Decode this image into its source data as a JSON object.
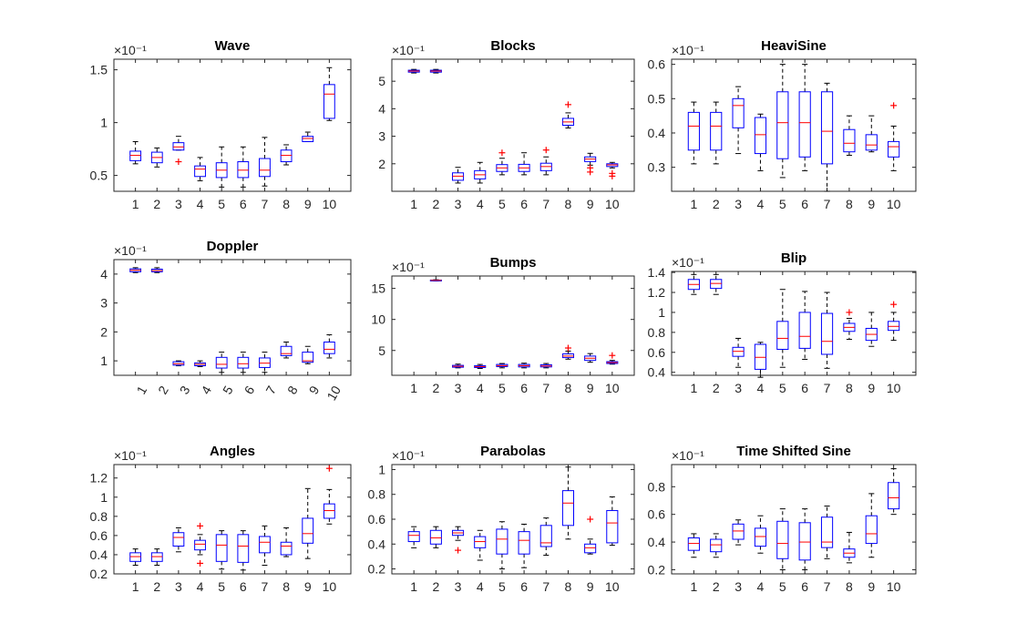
{
  "colors": {
    "box": "#0000ff",
    "median": "#ff0000",
    "whisker": "#000000",
    "outlier": "#ff0000",
    "axis": "#262626"
  },
  "chart_data": [
    {
      "type": "boxplot",
      "title": "Wave",
      "exponent": "×10⁻¹",
      "ylim": [
        0.35,
        1.6
      ],
      "yticks": [
        0.5,
        1,
        1.5
      ],
      "ytick_labels": [
        "0.5",
        "1",
        "1.5"
      ],
      "categories": [
        "1",
        "2",
        "3",
        "4",
        "5",
        "6",
        "7",
        "8",
        "9",
        "10"
      ],
      "rotate_xlabels": false,
      "boxes": [
        {
          "lw": 0.61,
          "q1": 0.64,
          "med": 0.69,
          "q3": 0.73,
          "uw": 0.82,
          "out": []
        },
        {
          "lw": 0.58,
          "q1": 0.62,
          "med": 0.67,
          "q3": 0.72,
          "uw": 0.76,
          "out": []
        },
        {
          "lw": 0.74,
          "q1": 0.74,
          "med": 0.77,
          "q3": 0.81,
          "uw": 0.87,
          "out": [
            0.63
          ]
        },
        {
          "lw": 0.45,
          "q1": 0.49,
          "med": 0.56,
          "q3": 0.59,
          "uw": 0.67,
          "out": []
        },
        {
          "lw": 0.39,
          "q1": 0.48,
          "med": 0.55,
          "q3": 0.62,
          "uw": 0.77,
          "out": []
        },
        {
          "lw": 0.39,
          "q1": 0.48,
          "med": 0.55,
          "q3": 0.63,
          "uw": 0.77,
          "out": []
        },
        {
          "lw": 0.4,
          "q1": 0.49,
          "med": 0.55,
          "q3": 0.66,
          "uw": 0.86,
          "out": []
        },
        {
          "lw": 0.6,
          "q1": 0.63,
          "med": 0.69,
          "q3": 0.74,
          "uw": 0.79,
          "out": []
        },
        {
          "lw": 0.82,
          "q1": 0.82,
          "med": 0.85,
          "q3": 0.87,
          "uw": 0.91,
          "out": []
        },
        {
          "lw": 1.02,
          "q1": 1.04,
          "med": 1.27,
          "q3": 1.36,
          "uw": 1.52,
          "out": []
        }
      ]
    },
    {
      "type": "boxplot",
      "title": "Blocks",
      "exponent": "×10⁻¹",
      "ylim": [
        1.0,
        5.8
      ],
      "yticks": [
        2,
        3,
        4,
        5
      ],
      "ytick_labels": [
        "2",
        "3",
        "4",
        "5"
      ],
      "categories": [
        "1",
        "2",
        "3",
        "4",
        "5",
        "6",
        "7",
        "8",
        "9",
        "10"
      ],
      "rotate_xlabels": false,
      "boxes": [
        {
          "lw": 5.3,
          "q1": 5.33,
          "med": 5.37,
          "q3": 5.4,
          "uw": 5.43,
          "out": []
        },
        {
          "lw": 5.3,
          "q1": 5.33,
          "med": 5.37,
          "q3": 5.4,
          "uw": 5.43,
          "out": []
        },
        {
          "lw": 1.3,
          "q1": 1.4,
          "med": 1.55,
          "q3": 1.67,
          "uw": 1.87,
          "out": []
        },
        {
          "lw": 1.3,
          "q1": 1.45,
          "med": 1.6,
          "q3": 1.75,
          "uw": 2.05,
          "out": []
        },
        {
          "lw": 1.6,
          "q1": 1.72,
          "med": 1.85,
          "q3": 1.97,
          "uw": 2.2,
          "out": [
            2.4
          ]
        },
        {
          "lw": 1.6,
          "q1": 1.72,
          "med": 1.85,
          "q3": 1.98,
          "uw": 2.4,
          "out": []
        },
        {
          "lw": 1.6,
          "q1": 1.75,
          "med": 1.9,
          "q3": 2.02,
          "uw": 2.25,
          "out": [
            2.5
          ]
        },
        {
          "lw": 3.3,
          "q1": 3.4,
          "med": 3.52,
          "q3": 3.65,
          "uw": 3.85,
          "out": [
            4.15
          ]
        },
        {
          "lw": 1.95,
          "q1": 2.08,
          "med": 2.17,
          "q3": 2.25,
          "uw": 2.38,
          "out": [
            1.85,
            1.7
          ]
        },
        {
          "lw": 1.85,
          "q1": 1.9,
          "med": 1.96,
          "q3": 2.0,
          "uw": 2.05,
          "out": [
            1.65,
            1.55
          ]
        }
      ]
    },
    {
      "type": "boxplot",
      "title": "HeaviSine",
      "exponent": "×10⁻¹",
      "ylim": [
        0.23,
        0.615
      ],
      "yticks": [
        0.3,
        0.4,
        0.5,
        0.6
      ],
      "ytick_labels": [
        "0.3",
        "0.4",
        "0.5",
        "0.6"
      ],
      "categories": [
        "1",
        "2",
        "3",
        "4",
        "5",
        "6",
        "7",
        "8",
        "9",
        "10"
      ],
      "rotate_xlabels": false,
      "boxes": [
        {
          "lw": 0.31,
          "q1": 0.35,
          "med": 0.42,
          "q3": 0.46,
          "uw": 0.49,
          "out": []
        },
        {
          "lw": 0.31,
          "q1": 0.35,
          "med": 0.42,
          "q3": 0.46,
          "uw": 0.49,
          "out": []
        },
        {
          "lw": 0.34,
          "q1": 0.415,
          "med": 0.48,
          "q3": 0.5,
          "uw": 0.535,
          "out": []
        },
        {
          "lw": 0.29,
          "q1": 0.34,
          "med": 0.395,
          "q3": 0.445,
          "uw": 0.455,
          "out": []
        },
        {
          "lw": 0.27,
          "q1": 0.325,
          "med": 0.43,
          "q3": 0.52,
          "uw": 0.6,
          "out": []
        },
        {
          "lw": 0.29,
          "q1": 0.33,
          "med": 0.43,
          "q3": 0.52,
          "uw": 0.6,
          "out": []
        },
        {
          "lw": 0.23,
          "q1": 0.31,
          "med": 0.405,
          "q3": 0.52,
          "uw": 0.545,
          "out": []
        },
        {
          "lw": 0.335,
          "q1": 0.345,
          "med": 0.37,
          "q3": 0.41,
          "uw": 0.45,
          "out": []
        },
        {
          "lw": 0.345,
          "q1": 0.35,
          "med": 0.365,
          "q3": 0.395,
          "uw": 0.45,
          "out": []
        },
        {
          "lw": 0.29,
          "q1": 0.33,
          "med": 0.36,
          "q3": 0.375,
          "uw": 0.42,
          "out": [
            0.48
          ]
        }
      ]
    },
    {
      "type": "boxplot",
      "title": "Doppler",
      "exponent": "×10⁻¹",
      "ylim": [
        0.5,
        4.5
      ],
      "yticks": [
        1,
        2,
        3,
        4
      ],
      "ytick_labels": [
        "1",
        "2",
        "3",
        "4"
      ],
      "categories": [
        "1",
        "2",
        "3",
        "4",
        "5",
        "6",
        "7",
        "8",
        "9",
        "10"
      ],
      "rotate_xlabels": true,
      "boxes": [
        {
          "lw": 4.05,
          "q1": 4.08,
          "med": 4.13,
          "q3": 4.18,
          "uw": 4.22,
          "out": []
        },
        {
          "lw": 4.05,
          "q1": 4.08,
          "med": 4.12,
          "q3": 4.17,
          "uw": 4.22,
          "out": []
        },
        {
          "lw": 0.83,
          "q1": 0.85,
          "med": 0.9,
          "q3": 0.97,
          "uw": 1.0,
          "out": []
        },
        {
          "lw": 0.8,
          "q1": 0.83,
          "med": 0.88,
          "q3": 0.93,
          "uw": 1.0,
          "out": []
        },
        {
          "lw": 0.6,
          "q1": 0.75,
          "med": 0.88,
          "q3": 1.12,
          "uw": 1.3,
          "out": []
        },
        {
          "lw": 0.6,
          "q1": 0.75,
          "med": 0.9,
          "q3": 1.12,
          "uw": 1.3,
          "out": []
        },
        {
          "lw": 0.6,
          "q1": 0.77,
          "med": 0.92,
          "q3": 1.1,
          "uw": 1.3,
          "out": []
        },
        {
          "lw": 1.1,
          "q1": 1.18,
          "med": 1.25,
          "q3": 1.5,
          "uw": 1.65,
          "out": []
        },
        {
          "lw": 0.9,
          "q1": 0.95,
          "med": 1.0,
          "q3": 1.3,
          "uw": 1.5,
          "out": []
        },
        {
          "lw": 1.1,
          "q1": 1.25,
          "med": 1.4,
          "q3": 1.65,
          "uw": 1.9,
          "out": []
        }
      ]
    },
    {
      "type": "boxplot",
      "title": "Bumps",
      "exponent": "×10⁻¹",
      "ylim": [
        1.0,
        17.0
      ],
      "yticks": [
        5,
        10,
        15
      ],
      "ytick_labels": [
        "5",
        "10",
        "15"
      ],
      "categories": [
        "1",
        "2",
        "3",
        "4",
        "5",
        "6",
        "7",
        "8",
        "9",
        "10"
      ],
      "rotate_xlabels": false,
      "boxes": [
        null,
        {
          "lw": 16.2,
          "q1": 16.25,
          "med": 16.3,
          "q3": 16.35,
          "uw": 16.4,
          "out": []
        },
        {
          "lw": 2.2,
          "q1": 2.3,
          "med": 2.45,
          "q3": 2.6,
          "uw": 2.8,
          "out": []
        },
        {
          "lw": 2.1,
          "q1": 2.25,
          "med": 2.4,
          "q3": 2.55,
          "uw": 2.75,
          "out": []
        },
        {
          "lw": 2.2,
          "q1": 2.4,
          "med": 2.55,
          "q3": 2.75,
          "uw": 2.9,
          "out": []
        },
        {
          "lw": 2.2,
          "q1": 2.35,
          "med": 2.55,
          "q3": 2.75,
          "uw": 2.95,
          "out": []
        },
        {
          "lw": 2.2,
          "q1": 2.35,
          "med": 2.5,
          "q3": 2.7,
          "uw": 2.9,
          "out": []
        },
        {
          "lw": 3.6,
          "q1": 3.85,
          "med": 4.1,
          "q3": 4.45,
          "uw": 4.9,
          "out": [
            5.4
          ]
        },
        {
          "lw": 3.1,
          "q1": 3.4,
          "med": 3.75,
          "q3": 4.1,
          "uw": 4.5,
          "out": []
        },
        {
          "lw": 2.8,
          "q1": 2.9,
          "med": 3.05,
          "q3": 3.2,
          "uw": 3.4,
          "out": [
            4.2
          ]
        }
      ]
    },
    {
      "type": "boxplot",
      "title": "Blip",
      "exponent": "×10⁻¹",
      "ylim": [
        0.37,
        1.41
      ],
      "yticks": [
        0.4,
        0.6,
        0.8,
        1.0,
        1.2,
        1.4
      ],
      "ytick_labels": [
        "0.4",
        "0.6",
        "0.8",
        "1",
        "1.2",
        "1.4"
      ],
      "categories": [
        "1",
        "2",
        "3",
        "4",
        "5",
        "6",
        "7",
        "8",
        "9",
        "10"
      ],
      "rotate_xlabels": false,
      "boxes": [
        {
          "lw": 1.18,
          "q1": 1.23,
          "med": 1.28,
          "q3": 1.33,
          "uw": 1.38,
          "out": []
        },
        {
          "lw": 1.18,
          "q1": 1.24,
          "med": 1.29,
          "q3": 1.33,
          "uw": 1.38,
          "out": []
        },
        {
          "lw": 0.45,
          "q1": 0.56,
          "med": 0.61,
          "q3": 0.65,
          "uw": 0.74,
          "out": []
        },
        {
          "lw": 0.35,
          "q1": 0.43,
          "med": 0.55,
          "q3": 0.68,
          "uw": 0.7,
          "out": []
        },
        {
          "lw": 0.45,
          "q1": 0.63,
          "med": 0.74,
          "q3": 0.91,
          "uw": 1.23,
          "out": []
        },
        {
          "lw": 0.53,
          "q1": 0.64,
          "med": 0.76,
          "q3": 1.0,
          "uw": 1.21,
          "out": []
        },
        {
          "lw": 0.44,
          "q1": 0.58,
          "med": 0.71,
          "q3": 0.99,
          "uw": 1.2,
          "out": []
        },
        {
          "lw": 0.73,
          "q1": 0.81,
          "med": 0.85,
          "q3": 0.89,
          "uw": 0.94,
          "out": [
            1.0
          ]
        },
        {
          "lw": 0.66,
          "q1": 0.72,
          "med": 0.78,
          "q3": 0.84,
          "uw": 1.0,
          "out": []
        },
        {
          "lw": 0.72,
          "q1": 0.82,
          "med": 0.86,
          "q3": 0.91,
          "uw": 1.0,
          "out": [
            1.08
          ]
        }
      ]
    },
    {
      "type": "boxplot",
      "title": "Angles",
      "exponent": "×10⁻¹",
      "ylim": [
        0.2,
        1.34
      ],
      "yticks": [
        0.2,
        0.4,
        0.6,
        0.8,
        1.0,
        1.2
      ],
      "ytick_labels": [
        "0.2",
        "0.4",
        "0.6",
        "0.8",
        "1",
        "1.2"
      ],
      "categories": [
        "1",
        "2",
        "3",
        "4",
        "5",
        "6",
        "7",
        "8",
        "9",
        "10"
      ],
      "rotate_xlabels": false,
      "boxes": [
        {
          "lw": 0.29,
          "q1": 0.33,
          "med": 0.38,
          "q3": 0.42,
          "uw": 0.46,
          "out": []
        },
        {
          "lw": 0.29,
          "q1": 0.33,
          "med": 0.38,
          "q3": 0.42,
          "uw": 0.46,
          "out": []
        },
        {
          "lw": 0.43,
          "q1": 0.49,
          "med": 0.58,
          "q3": 0.63,
          "uw": 0.68,
          "out": []
        },
        {
          "lw": 0.4,
          "q1": 0.45,
          "med": 0.51,
          "q3": 0.55,
          "uw": 0.61,
          "out": [
            0.7,
            0.31
          ]
        },
        {
          "lw": 0.25,
          "q1": 0.33,
          "med": 0.5,
          "q3": 0.61,
          "uw": 0.65,
          "out": []
        },
        {
          "lw": 0.24,
          "q1": 0.32,
          "med": 0.49,
          "q3": 0.61,
          "uw": 0.65,
          "out": []
        },
        {
          "lw": 0.29,
          "q1": 0.42,
          "med": 0.53,
          "q3": 0.59,
          "uw": 0.7,
          "out": []
        },
        {
          "lw": 0.38,
          "q1": 0.4,
          "med": 0.49,
          "q3": 0.53,
          "uw": 0.68,
          "out": []
        },
        {
          "lw": 0.36,
          "q1": 0.52,
          "med": 0.62,
          "q3": 0.78,
          "uw": 1.09,
          "out": []
        },
        {
          "lw": 0.72,
          "q1": 0.78,
          "med": 0.86,
          "q3": 0.93,
          "uw": 1.08,
          "out": [
            1.3
          ]
        }
      ]
    },
    {
      "type": "boxplot",
      "title": "Parabolas",
      "exponent": "×10⁻¹",
      "ylim": [
        0.16,
        1.04
      ],
      "yticks": [
        0.2,
        0.4,
        0.6,
        0.8,
        1.0
      ],
      "ytick_labels": [
        "0.2",
        "0.4",
        "0.6",
        "0.8",
        "1"
      ],
      "categories": [
        "1",
        "2",
        "3",
        "4",
        "5",
        "6",
        "7",
        "8",
        "9",
        "10"
      ],
      "rotate_xlabels": false,
      "boxes": [
        {
          "lw": 0.37,
          "q1": 0.42,
          "med": 0.47,
          "q3": 0.5,
          "uw": 0.54,
          "out": []
        },
        {
          "lw": 0.37,
          "q1": 0.4,
          "med": 0.45,
          "q3": 0.51,
          "uw": 0.54,
          "out": []
        },
        {
          "lw": 0.43,
          "q1": 0.47,
          "med": 0.49,
          "q3": 0.51,
          "uw": 0.54,
          "out": [
            0.35
          ]
        },
        {
          "lw": 0.27,
          "q1": 0.37,
          "med": 0.42,
          "q3": 0.46,
          "uw": 0.51,
          "out": []
        },
        {
          "lw": 0.2,
          "q1": 0.32,
          "med": 0.44,
          "q3": 0.52,
          "uw": 0.58,
          "out": []
        },
        {
          "lw": 0.21,
          "q1": 0.32,
          "med": 0.43,
          "q3": 0.5,
          "uw": 0.56,
          "out": []
        },
        {
          "lw": 0.31,
          "q1": 0.38,
          "med": 0.41,
          "q3": 0.55,
          "uw": 0.61,
          "out": []
        },
        {
          "lw": 0.44,
          "q1": 0.55,
          "med": 0.73,
          "q3": 0.83,
          "uw": 1.02,
          "out": []
        },
        {
          "lw": 0.32,
          "q1": 0.33,
          "med": 0.37,
          "q3": 0.4,
          "uw": 0.44,
          "out": [
            0.6
          ]
        },
        {
          "lw": 0.39,
          "q1": 0.41,
          "med": 0.57,
          "q3": 0.67,
          "uw": 0.78,
          "out": []
        }
      ]
    },
    {
      "type": "boxplot",
      "title": "Time Shifted Sine",
      "exponent": "×10⁻¹",
      "ylim": [
        0.17,
        0.96
      ],
      "yticks": [
        0.2,
        0.4,
        0.6,
        0.8
      ],
      "ytick_labels": [
        "0.2",
        "0.4",
        "0.6",
        "0.8"
      ],
      "categories": [
        "1",
        "2",
        "3",
        "4",
        "5",
        "6",
        "7",
        "8",
        "9",
        "10"
      ],
      "rotate_xlabels": false,
      "boxes": [
        {
          "lw": 0.29,
          "q1": 0.34,
          "med": 0.39,
          "q3": 0.43,
          "uw": 0.46,
          "out": []
        },
        {
          "lw": 0.29,
          "q1": 0.33,
          "med": 0.38,
          "q3": 0.42,
          "uw": 0.46,
          "out": []
        },
        {
          "lw": 0.38,
          "q1": 0.42,
          "med": 0.48,
          "q3": 0.53,
          "uw": 0.56,
          "out": []
        },
        {
          "lw": 0.32,
          "q1": 0.37,
          "med": 0.44,
          "q3": 0.5,
          "uw": 0.59,
          "out": []
        },
        {
          "lw": 0.2,
          "q1": 0.28,
          "med": 0.39,
          "q3": 0.55,
          "uw": 0.64,
          "out": []
        },
        {
          "lw": 0.2,
          "q1": 0.27,
          "med": 0.4,
          "q3": 0.54,
          "uw": 0.64,
          "out": []
        },
        {
          "lw": 0.28,
          "q1": 0.36,
          "med": 0.4,
          "q3": 0.58,
          "uw": 0.66,
          "out": []
        },
        {
          "lw": 0.25,
          "q1": 0.29,
          "med": 0.32,
          "q3": 0.35,
          "uw": 0.47,
          "out": []
        },
        {
          "lw": 0.29,
          "q1": 0.39,
          "med": 0.46,
          "q3": 0.59,
          "uw": 0.75,
          "out": []
        },
        {
          "lw": 0.6,
          "q1": 0.64,
          "med": 0.72,
          "q3": 0.83,
          "uw": 0.93,
          "out": []
        }
      ]
    }
  ]
}
